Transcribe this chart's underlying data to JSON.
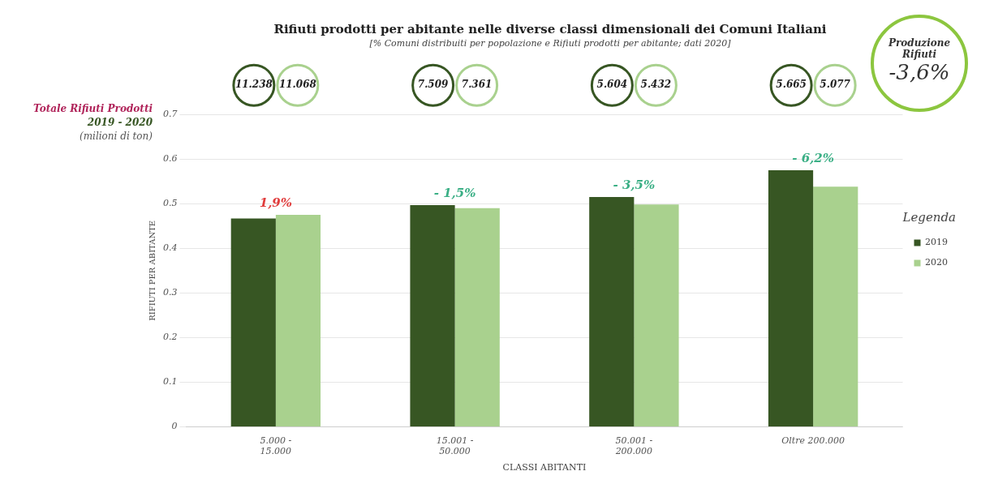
{
  "chart_data": {
    "type": "bar",
    "title": "Rifiuti prodotti per abitante nelle diverse classi dimensionali dei Comuni Italiani",
    "subtitle": "[% Comuni distribuiti per popolazione e Rifiuti prodotti per abitante; dati 2020]",
    "xlabel": "CLASSI ABITANTI",
    "ylabel": "RIFIUTI PER ABITANTE",
    "legend_title": "Legenda",
    "categories": [
      "5.000 - 15.000",
      "15.001 - 50.000",
      "50.001 - 200.000",
      "Oltre 200.000"
    ],
    "series": [
      {
        "name": "2019",
        "color": "#375623",
        "values": [
          0.467,
          0.497,
          0.515,
          0.575
        ]
      },
      {
        "name": "2020",
        "color": "#a9d18e",
        "values": [
          0.475,
          0.49,
          0.498,
          0.538
        ]
      }
    ],
    "ylim": [
      0,
      0.7
    ],
    "yticks": [
      0,
      0.1,
      0.2,
      0.3,
      0.4,
      0.5,
      0.6,
      0.7
    ],
    "grid": "y",
    "legend": "right",
    "annotations": [
      "1,9%",
      "- 1,5%",
      "- 3,5%",
      "- 6,2%",
      "11.238",
      "11.068",
      "7.509",
      "7.361",
      "5.604",
      "5.432",
      "5.665",
      "5.077",
      "Totale Rifiuti Prodotti",
      "2019 - 2020",
      "(milioni di ton)",
      "Produzione Rifiuti",
      "-3,6%"
    ]
  }
}
